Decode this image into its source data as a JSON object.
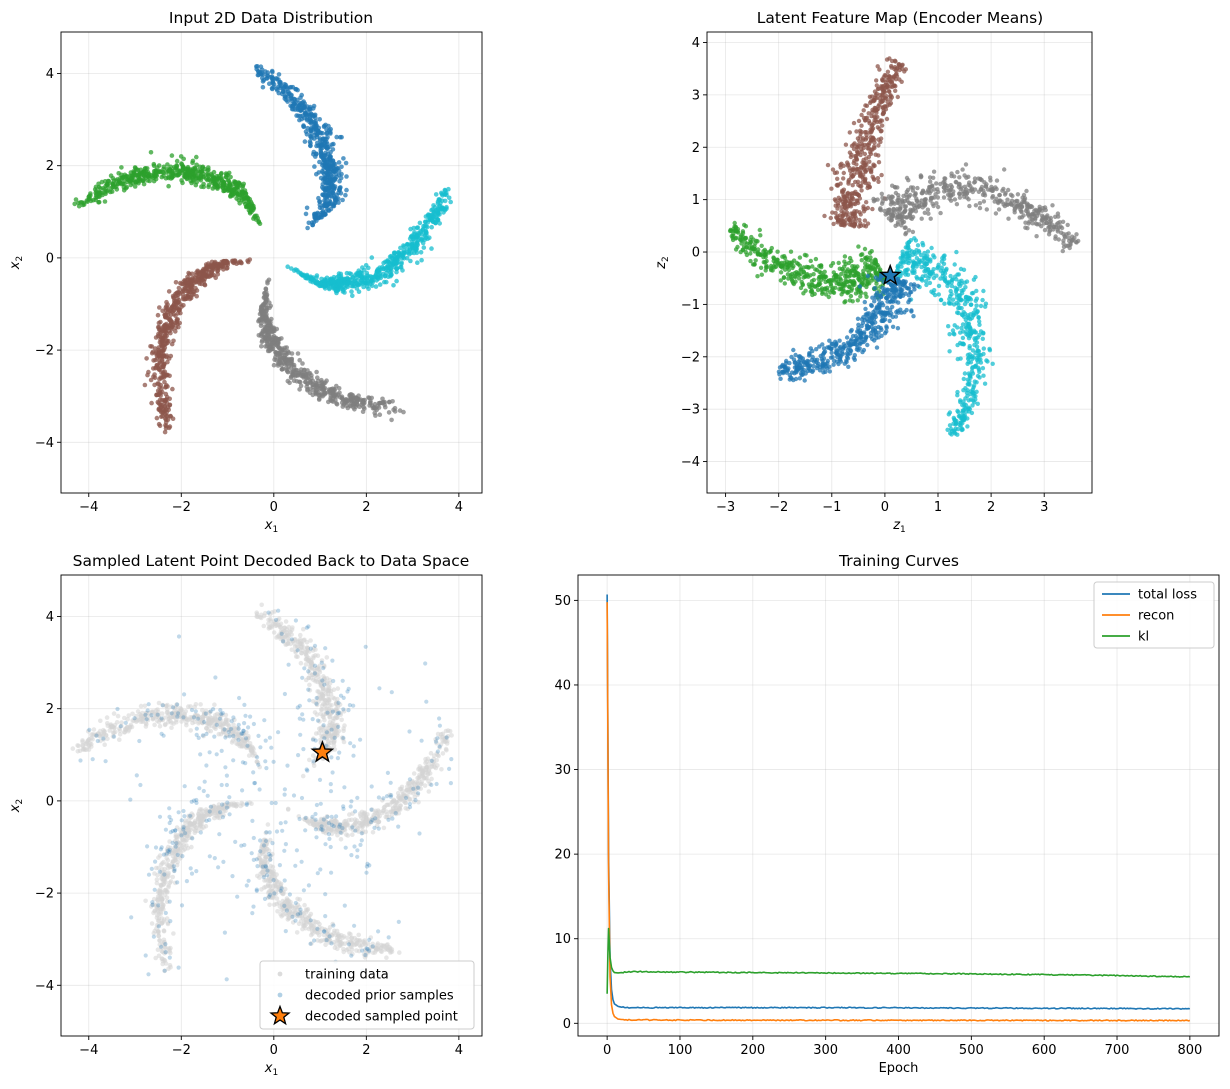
{
  "chart_data": [
    {
      "type": "scatter",
      "title": "Input 2D Data Distribution",
      "xlabel": "x",
      "xlabel_sub": "1",
      "ylabel": "x",
      "ylabel_sub": "2",
      "xlim": [
        -4.6,
        4.5
      ],
      "ylim": [
        -5.1,
        4.9
      ],
      "xticks": [
        -4,
        -2,
        0,
        2,
        4
      ],
      "yticks": [
        -4,
        -2,
        0,
        2,
        4
      ],
      "xtick_labels": [
        "−4",
        "−2",
        "0",
        "2",
        "4"
      ],
      "ytick_labels": [
        "−4",
        "−2",
        "0",
        "2",
        "4"
      ],
      "grid": true,
      "series_style": "five pinwheel arms, one colour per class",
      "arms": [
        {
          "name": "arm-blue",
          "color": "#1f77b4",
          "theta_range": [
            1.67,
            0.7
          ],
          "r_range": [
            4.1,
            1.4
          ]
        },
        {
          "name": "arm-cyan",
          "color": "#17becf",
          "theta_range": [
            0.39,
            -0.57
          ],
          "r_range": [
            4.0,
            0.9
          ]
        },
        {
          "name": "arm-gray",
          "color": "#7f7f7f",
          "theta_range": [
            -0.87,
            -1.83
          ],
          "r_range": [
            4.2,
            1.0
          ]
        },
        {
          "name": "arm-brown",
          "color": "#8c564b",
          "theta_range": [
            -2.12,
            -3.08
          ],
          "r_range": [
            4.3,
            1.0
          ]
        },
        {
          "name": "arm-green",
          "color": "#2ca02c",
          "theta_range": [
            -3.39,
            -4.34
          ],
          "r_range": [
            4.4,
            1.2
          ]
        }
      ]
    },
    {
      "type": "scatter",
      "title": "Latent Feature Map (Encoder Means)",
      "xlabel": "z",
      "xlabel_sub": "1",
      "ylabel": "z",
      "ylabel_sub": "2",
      "xlim": [
        -3.35,
        3.9
      ],
      "ylim": [
        -4.6,
        4.2
      ],
      "xticks": [
        -3,
        -2,
        -1,
        0,
        1,
        2,
        3
      ],
      "yticks": [
        -4,
        -3,
        -2,
        -1,
        0,
        1,
        2,
        3,
        4
      ],
      "xtick_labels": [
        "−3",
        "−2",
        "−1",
        "0",
        "1",
        "2",
        "3"
      ],
      "ytick_labels": [
        "−4",
        "−3",
        "−2",
        "−1",
        "0",
        "1",
        "2",
        "3",
        "4"
      ],
      "grid": true,
      "arms": [
        {
          "name": "latent-brown",
          "color": "#8c564b",
          "path": [
            [
              -0.7,
              0.5
            ],
            [
              -0.6,
              1.3
            ],
            [
              -0.35,
              2.1
            ],
            [
              -0.05,
              3.1
            ],
            [
              0.3,
              3.6
            ]
          ]
        },
        {
          "name": "latent-gray",
          "color": "#7f7f7f",
          "path": [
            [
              0.1,
              0.6
            ],
            [
              0.7,
              1.15
            ],
            [
              1.6,
              1.25
            ],
            [
              2.5,
              0.9
            ],
            [
              3.2,
              0.5
            ],
            [
              3.6,
              0.1
            ]
          ]
        },
        {
          "name": "latent-green",
          "color": "#2ca02c",
          "path": [
            [
              -0.1,
              -0.3
            ],
            [
              -0.9,
              -0.65
            ],
            [
              -1.6,
              -0.4
            ],
            [
              -2.3,
              -0.1
            ],
            [
              -2.9,
              0.5
            ]
          ]
        },
        {
          "name": "latent-cyan",
          "color": "#17becf",
          "path": [
            [
              0.3,
              -0.1
            ],
            [
              0.9,
              -0.3
            ],
            [
              1.45,
              -0.8
            ],
            [
              1.7,
              -1.7
            ],
            [
              1.6,
              -2.6
            ],
            [
              1.3,
              -3.5
            ]
          ]
        },
        {
          "name": "latent-blue",
          "color": "#1f77b4",
          "path": [
            [
              0.2,
              -0.5
            ],
            [
              0.0,
              -1.2
            ],
            [
              -0.6,
              -1.8
            ],
            [
              -1.3,
              -2.1
            ],
            [
              -2.0,
              -2.3
            ]
          ]
        }
      ],
      "marker": {
        "label": "latent star",
        "x": 0.1,
        "y": -0.45,
        "color": "#1f77b4"
      }
    },
    {
      "type": "scatter",
      "title": "Sampled Latent Point Decoded Back to Data Space",
      "xlabel": "x",
      "xlabel_sub": "1",
      "ylabel": "x",
      "ylabel_sub": "2",
      "xlim": [
        -4.6,
        4.5
      ],
      "ylim": [
        -5.1,
        4.9
      ],
      "xticks": [
        -4,
        -2,
        0,
        2,
        4
      ],
      "yticks": [
        -4,
        -2,
        0,
        2,
        4
      ],
      "xtick_labels": [
        "−4",
        "−2",
        "0",
        "2",
        "4"
      ],
      "ytick_labels": [
        "−4",
        "−2",
        "0",
        "2",
        "4"
      ],
      "grid": true,
      "legend": {
        "placement": "lower-right",
        "entries": [
          {
            "label": "training data",
            "color": "#d3d3d3",
            "marker": "dot"
          },
          {
            "label": "decoded prior samples",
            "color": "#1f77b4",
            "marker": "dot"
          },
          {
            "label": "decoded sampled point",
            "color": "#ff7f0e",
            "marker": "star"
          }
        ]
      },
      "sampled_point": {
        "x": 1.05,
        "y": 1.05
      }
    },
    {
      "type": "line",
      "title": "Training Curves",
      "xlabel": "Epoch",
      "ylabel": "",
      "xlim": [
        -40,
        840
      ],
      "ylim": [
        -1.5,
        53
      ],
      "xticks": [
        0,
        100,
        200,
        300,
        400,
        500,
        600,
        700,
        800
      ],
      "yticks": [
        0,
        10,
        20,
        30,
        40,
        50
      ],
      "xtick_labels": [
        "0",
        "100",
        "200",
        "300",
        "400",
        "500",
        "600",
        "700",
        "800"
      ],
      "ytick_labels": [
        "0",
        "10",
        "20",
        "30",
        "40",
        "50"
      ],
      "grid": true,
      "legend": {
        "placement": "top-right",
        "entries": [
          {
            "label": "total loss",
            "color": "#1f77b4"
          },
          {
            "label": "recon",
            "color": "#ff7f0e"
          },
          {
            "label": "kl",
            "color": "#2ca02c"
          }
        ]
      },
      "series": [
        {
          "name": "total loss",
          "color": "#1f77b4",
          "x": [
            0,
            2,
            4,
            6,
            8,
            10,
            15,
            20,
            30,
            50,
            100,
            200,
            300,
            400,
            500,
            600,
            700,
            800
          ],
          "values": [
            50.7,
            20.0,
            7.5,
            4.0,
            2.8,
            2.3,
            2.0,
            1.9,
            1.85,
            1.85,
            1.85,
            1.85,
            1.85,
            1.83,
            1.8,
            1.78,
            1.75,
            1.72
          ]
        },
        {
          "name": "recon",
          "color": "#ff7f0e",
          "x": [
            0,
            2,
            4,
            6,
            8,
            10,
            15,
            20,
            30,
            50,
            100,
            200,
            300,
            400,
            500,
            600,
            700,
            800
          ],
          "values": [
            49.8,
            18.0,
            5.5,
            2.2,
            1.2,
            0.8,
            0.5,
            0.45,
            0.4,
            0.4,
            0.38,
            0.37,
            0.36,
            0.35,
            0.35,
            0.34,
            0.34,
            0.34
          ]
        },
        {
          "name": "kl",
          "color": "#2ca02c",
          "x": [
            0,
            1,
            2,
            3,
            4,
            6,
            8,
            10,
            15,
            20,
            30,
            50,
            100,
            200,
            300,
            400,
            500,
            600,
            700,
            800
          ],
          "values": [
            3.5,
            8.0,
            11.2,
            9.5,
            7.8,
            6.6,
            6.2,
            6.0,
            5.95,
            6.0,
            6.1,
            6.1,
            6.05,
            6.0,
            5.95,
            5.9,
            5.85,
            5.75,
            5.65,
            5.5
          ]
        }
      ]
    }
  ]
}
